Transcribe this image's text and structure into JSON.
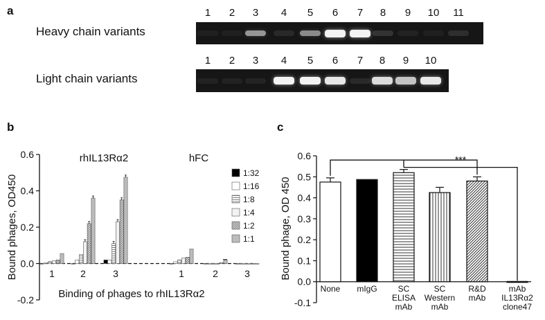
{
  "panel_a": {
    "letter": "a",
    "heavy": {
      "label": "Heavy chain variants",
      "lanes": [
        "1",
        "2",
        "3",
        "4",
        "5",
        "6",
        "7",
        "8",
        "9",
        "10",
        "11"
      ],
      "band_intensity": [
        0.04,
        0.04,
        0.55,
        0.08,
        0.5,
        0.95,
        0.95,
        0.12,
        0.05,
        0.04,
        0.1
      ]
    },
    "light": {
      "label": "Light chain variants",
      "lanes": [
        "1",
        "2",
        "3",
        "4",
        "5",
        "6",
        "7",
        "8",
        "9",
        "10"
      ],
      "band_intensity": [
        0.05,
        0.05,
        0.06,
        0.95,
        0.95,
        0.9,
        0.08,
        0.85,
        0.75,
        0.9
      ]
    },
    "colors": {
      "gel": "#161616",
      "band": "#ffffff"
    }
  },
  "panel_b": {
    "letter": "b",
    "chart_data": {
      "type": "bar",
      "ylabel": "Bound phages, OD450",
      "xlabel": "Binding of phages to rhIL13Rα2",
      "ylim": [
        -0.2,
        0.6
      ],
      "yticks": [
        "-0.2",
        "0.0",
        "0.2",
        "0.4",
        "0.6"
      ],
      "legend": [
        "1:32",
        "1:16",
        "1:8",
        "1:4",
        "1:2",
        "1:1"
      ],
      "legend_position": "right",
      "groups": [
        {
          "title": "rhIL13Rα2",
          "categories": [
            "1",
            "2",
            "3"
          ],
          "series": [
            {
              "name": "1:32",
              "values": [
                0.0,
                0.0,
                0.02
              ]
            },
            {
              "name": "1:16",
              "values": [
                0.005,
                0.02,
                0.02
              ]
            },
            {
              "name": "1:8",
              "values": [
                0.01,
                0.05,
                0.11
              ]
            },
            {
              "name": "1:4",
              "values": [
                0.015,
                0.12,
                0.23
              ]
            },
            {
              "name": "1:2",
              "values": [
                0.02,
                0.22,
                0.35
              ]
            },
            {
              "name": "1:1",
              "values": [
                0.055,
                0.36,
                0.475
              ]
            }
          ]
        },
        {
          "title": "hFC",
          "categories": [
            "1",
            "2",
            "3"
          ],
          "series": [
            {
              "name": "1:32",
              "values": [
                0.0,
                0.0,
                0.0
              ]
            },
            {
              "name": "1:16",
              "values": [
                0.01,
                0.0,
                0.0
              ]
            },
            {
              "name": "1:8",
              "values": [
                0.02,
                0.0,
                0.0
              ]
            },
            {
              "name": "1:4",
              "values": [
                0.03,
                0.0,
                0.0
              ]
            },
            {
              "name": "1:2",
              "values": [
                0.035,
                0.005,
                0.0
              ]
            },
            {
              "name": "1:1",
              "values": [
                0.08,
                0.02,
                0.0
              ]
            }
          ]
        }
      ]
    }
  },
  "panel_c": {
    "letter": "c",
    "chart_data": {
      "type": "bar",
      "ylabel": "Bound phage, OD 450",
      "ylim": [
        -0.1,
        0.6
      ],
      "yticks": [
        "-0.1",
        "0.0",
        "0.1",
        "0.2",
        "0.3",
        "0.4",
        "0.5",
        "0.6"
      ],
      "categories": [
        [
          "None"
        ],
        [
          "mIgG"
        ],
        [
          "SC",
          "ELISA",
          "mAb"
        ],
        [
          "SC",
          "Western",
          "mAb"
        ],
        [
          "R&D",
          "mAb"
        ],
        [
          "mAb",
          "IL13Rα2",
          "clone47"
        ]
      ],
      "values": [
        0.475,
        0.487,
        0.52,
        0.425,
        0.48,
        0.0
      ],
      "errors": [
        0.02,
        0.0,
        0.015,
        0.025,
        0.02,
        0.0
      ],
      "fills": [
        "white",
        "black",
        "hstripe",
        "vstripe",
        "diagonal",
        "white"
      ],
      "significance": "***"
    }
  }
}
